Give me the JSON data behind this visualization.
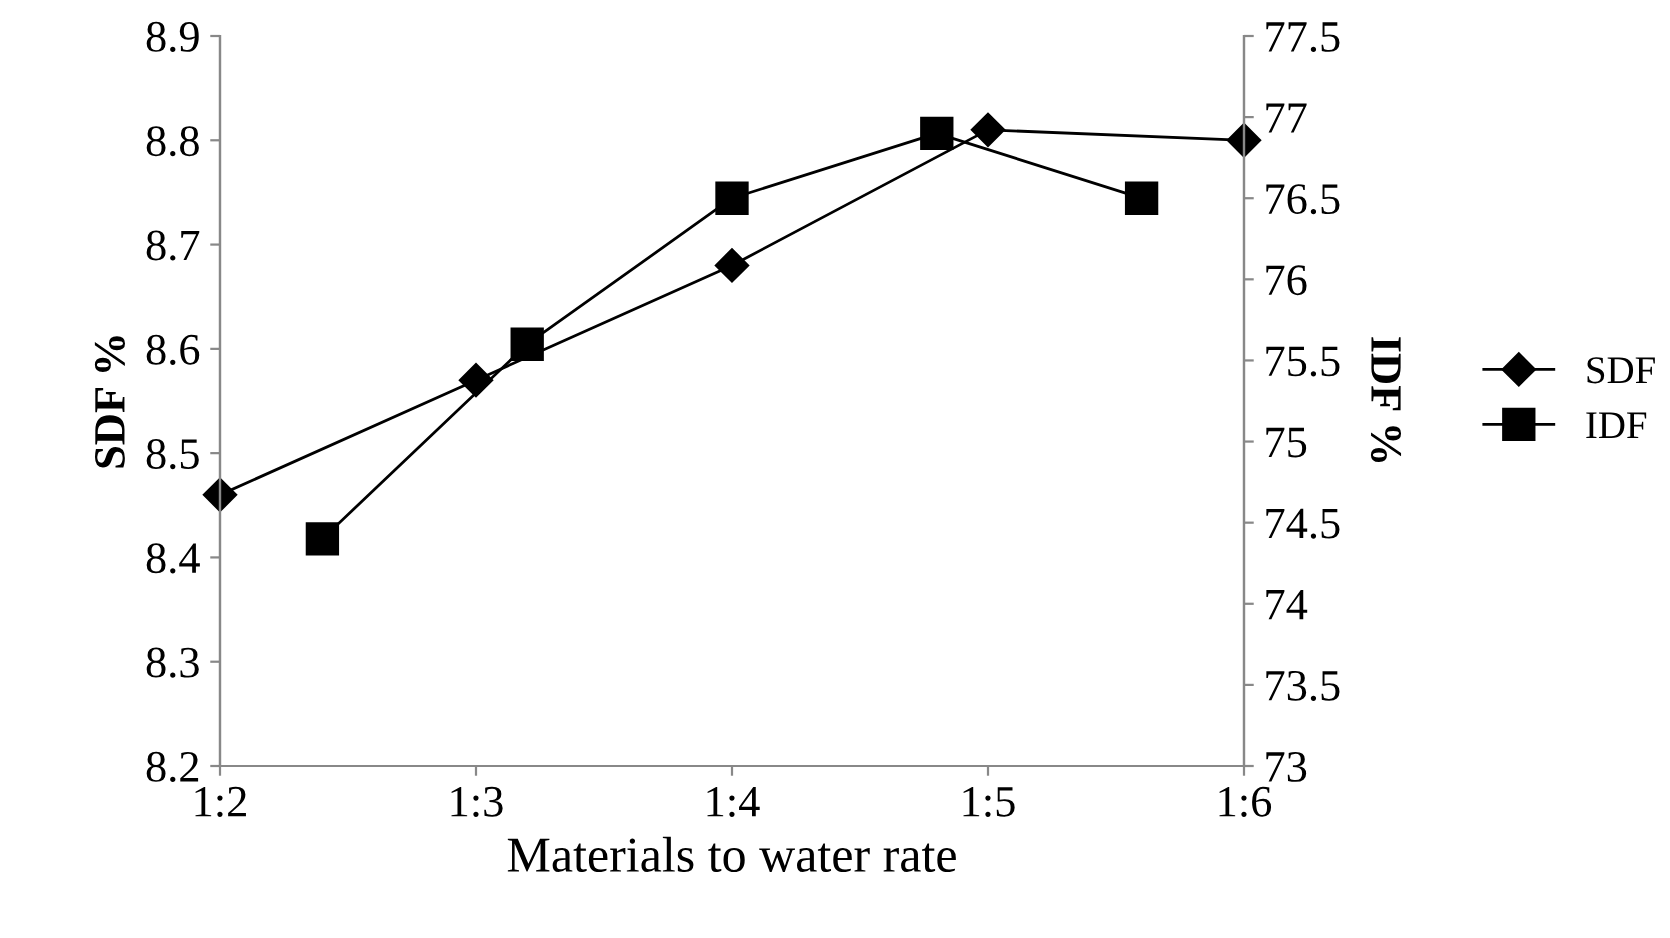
{
  "chart_data": {
    "type": "line",
    "xlabel": "Materials to water rate",
    "ylabel": "SDF %",
    "y2label": "IDF %",
    "categories": [
      "1:2",
      null,
      null,
      null,
      null,
      "1:3",
      null,
      null,
      null,
      null,
      "1:4",
      null,
      null,
      null,
      null,
      "1:5",
      null,
      null,
      null,
      null,
      "1:6"
    ],
    "ylim": [
      8.2,
      8.9
    ],
    "yticks": [
      8.2,
      8.3,
      8.4,
      8.5,
      8.6,
      8.7,
      8.8,
      8.9
    ],
    "y2lim": [
      73,
      77.5
    ],
    "y2ticks": [
      73,
      73.5,
      74,
      74.5,
      75,
      75.5,
      76,
      76.5,
      77,
      77.5
    ],
    "legend": "right",
    "grid": false,
    "series": [
      {
        "name": "SDF",
        "color": "#000000",
        "marker": "diamond",
        "values": [
          8.46,
          null,
          null,
          null,
          null,
          8.57,
          null,
          null,
          null,
          null,
          8.68,
          null,
          null,
          null,
          null,
          8.81,
          null,
          null,
          null,
          null,
          8.8
        ]
      },
      {
        "name": "IDF",
        "color": "#000000",
        "marker": "square",
        "axis": "y2",
        "values": [
          null,
          null,
          74.4,
          null,
          null,
          null,
          75.6,
          null,
          null,
          null,
          76.5,
          null,
          null,
          null,
          76.9,
          null,
          null,
          null,
          76.5,
          null,
          null
        ]
      }
    ]
  }
}
